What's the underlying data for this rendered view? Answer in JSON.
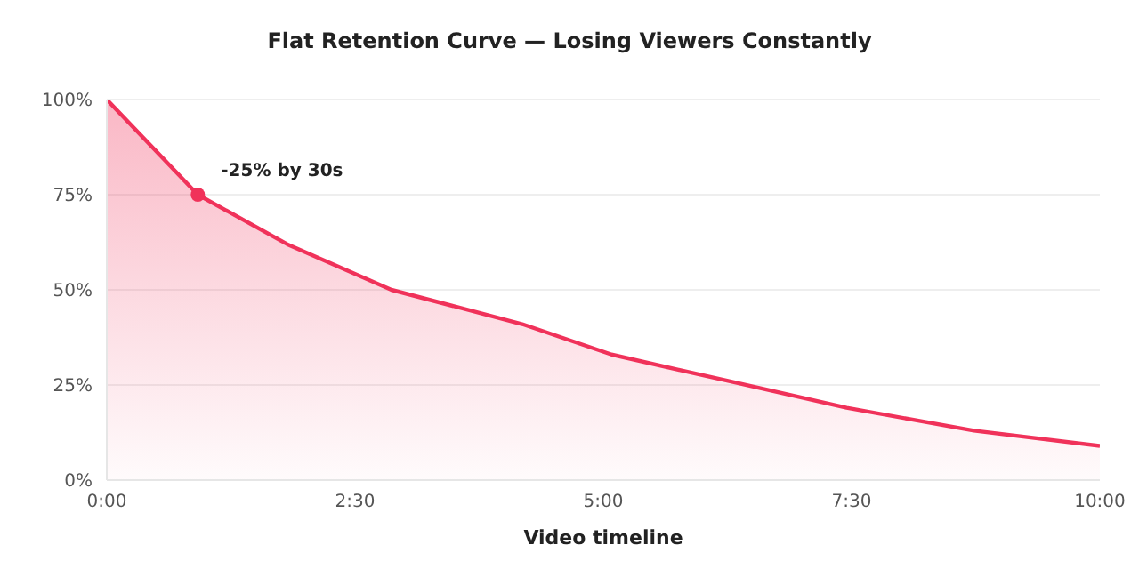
{
  "chart_data": {
    "type": "area",
    "title": "Flat Retention Curve — Losing Viewers Constantly",
    "xlabel": "Video timeline",
    "x": [
      0,
      55,
      109,
      172,
      251,
      305,
      376,
      447,
      524,
      600
    ],
    "series": [
      {
        "color": "#f0325a",
        "values": [
          100,
          75,
          62,
          50,
          41,
          33,
          26,
          19,
          13,
          9
        ]
      }
    ],
    "xlim": [
      0,
      600
    ],
    "xticks": [
      {
        "value": 0,
        "label": "0:00"
      },
      {
        "value": 150,
        "label": "2:30"
      },
      {
        "value": 300,
        "label": "5:00"
      },
      {
        "value": 450,
        "label": "7:30"
      },
      {
        "value": 600,
        "label": "10:00"
      }
    ],
    "ylim": [
      0,
      100
    ],
    "yticks": [
      {
        "value": 0,
        "label": "0%"
      },
      {
        "value": 25,
        "label": "25%"
      },
      {
        "value": 50,
        "label": "50%"
      },
      {
        "value": 75,
        "label": "75%"
      },
      {
        "value": 100,
        "label": "100%"
      }
    ],
    "grid": "y",
    "legend": false,
    "marker": "none",
    "line_style": "solid",
    "annotations": [
      {
        "text": "-25% by 30s",
        "x": 55,
        "y": 75
      }
    ]
  }
}
